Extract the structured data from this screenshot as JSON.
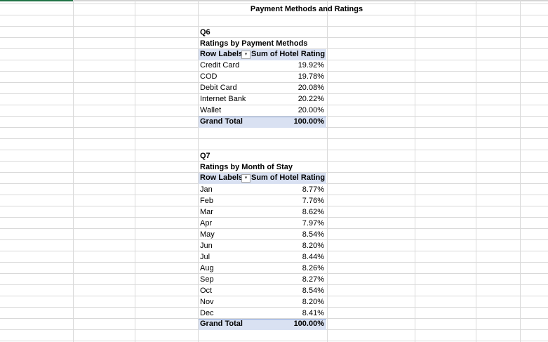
{
  "title": "Payment Methods and Ratings",
  "q6": {
    "label": "Q6",
    "subtitle": "Ratings by Payment Methods",
    "header_row": "Row Labels",
    "header_value": "Sum of Hotel Rating",
    "rows": [
      {
        "label": "Credit Card",
        "value": "19.92%"
      },
      {
        "label": "COD",
        "value": "19.78%"
      },
      {
        "label": "Debit Card",
        "value": "20.08%"
      },
      {
        "label": "Internet Bank",
        "value": "20.22%"
      },
      {
        "label": "Wallet",
        "value": "20.00%"
      }
    ],
    "total_label": "Grand Total",
    "total_value": "100.00%"
  },
  "q7": {
    "label": "Q7",
    "subtitle": "Ratings by Month of Stay",
    "header_row": "Row Labels",
    "header_value": "Sum of Hotel Rating",
    "rows": [
      {
        "label": "Jan",
        "value": "8.77%"
      },
      {
        "label": "Feb",
        "value": "7.76%"
      },
      {
        "label": "Mar",
        "value": "8.62%"
      },
      {
        "label": "Apr",
        "value": "7.97%"
      },
      {
        "label": "May",
        "value": "8.54%"
      },
      {
        "label": "Jun",
        "value": "8.20%"
      },
      {
        "label": "Jul",
        "value": "8.44%"
      },
      {
        "label": "Aug",
        "value": "8.26%"
      },
      {
        "label": "Sep",
        "value": "8.27%"
      },
      {
        "label": "Oct",
        "value": "8.54%"
      },
      {
        "label": "Nov",
        "value": "8.20%"
      },
      {
        "label": "Dec",
        "value": "8.41%"
      }
    ],
    "total_label": "Grand Total",
    "total_value": "100.00%"
  },
  "icons": {
    "filter": "filter-dropdown-icon"
  },
  "colors": {
    "pivot_header_bg": "#d9e1f2",
    "gridline": "#d9d9d9",
    "accent": "#217346"
  }
}
